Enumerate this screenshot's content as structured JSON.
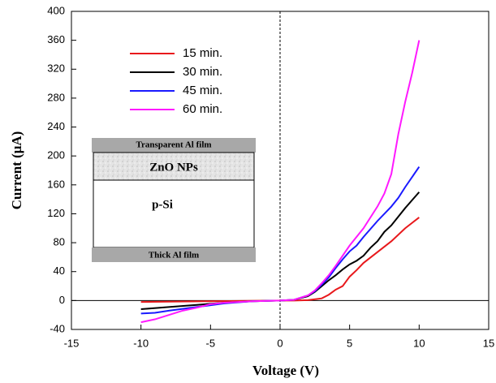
{
  "chart_data": {
    "type": "line",
    "xlabel": "Voltage (V)",
    "ylabel": "Current  (μA)",
    "xlim": [
      -15,
      15
    ],
    "xticks": [
      -15,
      -10,
      -5,
      0,
      5,
      10,
      15
    ],
    "ylim": [
      -40,
      400
    ],
    "yticks": [
      -40,
      0,
      40,
      80,
      120,
      160,
      200,
      240,
      280,
      320,
      360,
      400
    ],
    "vline": 0,
    "hline": 0,
    "legend": "upper left",
    "series": [
      {
        "name": "15 min.",
        "color": "#e8191c",
        "x": [
          -10,
          -5,
          0,
          1,
          2,
          3,
          3.5,
          4,
          4.5,
          5,
          5.5,
          6,
          7,
          8,
          9,
          10
        ],
        "values": [
          -2,
          -1,
          0,
          0,
          0.5,
          3,
          8,
          15,
          20,
          33,
          42,
          52,
          67,
          82,
          100,
          115
        ]
      },
      {
        "name": "30 min.",
        "color": "#000000",
        "x": [
          -10,
          -8,
          -6,
          -4,
          -2,
          0,
          1,
          2,
          2.5,
          3,
          3.5,
          4,
          4.5,
          5,
          5.5,
          6,
          6.5,
          7,
          7.5,
          8,
          9,
          10
        ],
        "values": [
          -12,
          -9,
          -6,
          -3,
          -1,
          0,
          1,
          6,
          12,
          20,
          28,
          35,
          43,
          50,
          55,
          62,
          73,
          82,
          95,
          104,
          128,
          150
        ]
      },
      {
        "name": "45 min.",
        "color": "#1a1aff",
        "x": [
          -10,
          -9,
          -8,
          -6,
          -4,
          -2,
          0,
          1,
          2,
          2.5,
          3,
          3.5,
          4,
          4.5,
          5,
          5.5,
          6,
          7,
          8,
          8.5,
          9,
          10
        ],
        "values": [
          -18,
          -17,
          -14,
          -9,
          -4,
          -1,
          0,
          1,
          7,
          13,
          22,
          32,
          45,
          57,
          68,
          76,
          88,
          110,
          130,
          142,
          157,
          185
        ]
      },
      {
        "name": "60 min.",
        "color": "#ff19ff",
        "x": [
          -10,
          -9,
          -8,
          -7,
          -6,
          -5,
          -4,
          -2,
          0,
          1,
          2,
          2.5,
          3,
          3.5,
          4,
          4.5,
          5,
          6,
          7,
          7.5,
          8,
          8.5,
          9,
          9.5,
          10
        ],
        "values": [
          -30,
          -26,
          -20,
          -14,
          -10,
          -5,
          -3,
          -1,
          0,
          1,
          7,
          14,
          24,
          35,
          48,
          62,
          76,
          100,
          130,
          148,
          175,
          230,
          275,
          315,
          360
        ]
      }
    ],
    "inset": {
      "top_layer": "Transparent Al film",
      "film_layer": "ZnO NPs",
      "substrate": "p-Si",
      "bottom_layer": "Thick Al film"
    }
  }
}
